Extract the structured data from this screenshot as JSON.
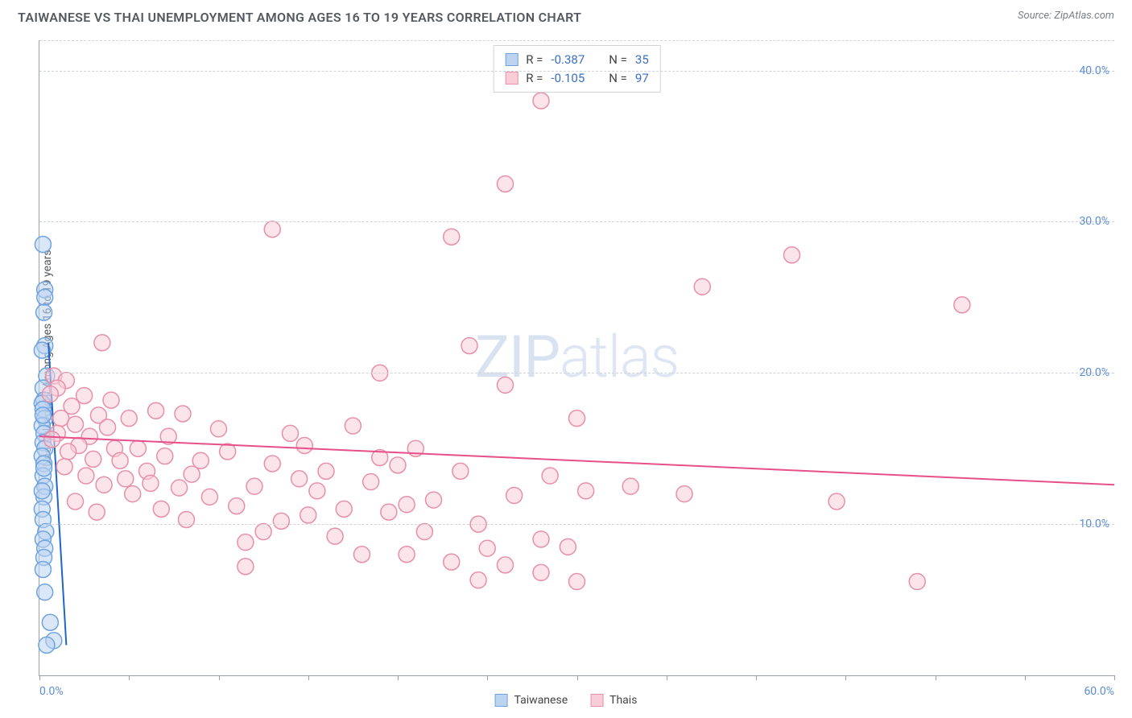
{
  "title": "TAIWANESE VS THAI UNEMPLOYMENT AMONG AGES 16 TO 19 YEARS CORRELATION CHART",
  "source": "Source: ZipAtlas.com",
  "y_axis_label": "Unemployment Among Ages 16 to 19 years",
  "watermark_bold": "ZIP",
  "watermark_light": "atlas",
  "chart": {
    "type": "scatter",
    "background_color": "#ffffff",
    "grid_color": "#d0d4d9",
    "axis_color": "#9aa0a6",
    "xlim": [
      0,
      60
    ],
    "ylim": [
      0,
      42
    ],
    "x_ticks": [
      0,
      5,
      10,
      15,
      20,
      25,
      30,
      35,
      40,
      45,
      50,
      55,
      60
    ],
    "x_tick_labels": {
      "0": "0.0%",
      "60": "60.0%"
    },
    "y_gridlines": [
      10,
      20,
      30,
      40
    ],
    "y_tick_labels": {
      "10": "10.0%",
      "20": "20.0%",
      "30": "30.0%",
      "40": "40.0%"
    },
    "marker_radius": 10,
    "marker_opacity": 0.55,
    "line_width": 2,
    "series": [
      {
        "name": "Taiwanese",
        "color_fill": "#bcd4f0",
        "color_stroke": "#6ea3e0",
        "line_color": "#1e66c7",
        "R": "-0.387",
        "N": "35",
        "trend": {
          "x1": 0.5,
          "y1": 22,
          "x2": 1.5,
          "y2": 2
        },
        "points": [
          [
            0.2,
            28.5
          ],
          [
            0.3,
            25.5
          ],
          [
            0.3,
            25.0
          ],
          [
            0.25,
            24.0
          ],
          [
            0.3,
            21.8
          ],
          [
            0.15,
            21.5
          ],
          [
            0.4,
            19.8
          ],
          [
            0.2,
            19.0
          ],
          [
            0.25,
            18.2
          ],
          [
            0.15,
            18.0
          ],
          [
            0.2,
            17.6
          ],
          [
            0.3,
            17.0
          ],
          [
            0.15,
            16.5
          ],
          [
            0.25,
            16.0
          ],
          [
            0.2,
            15.4
          ],
          [
            0.3,
            15.0
          ],
          [
            0.15,
            14.5
          ],
          [
            0.25,
            14.0
          ],
          [
            0.2,
            13.2
          ],
          [
            0.3,
            12.5
          ],
          [
            0.25,
            11.8
          ],
          [
            0.15,
            11.0
          ],
          [
            0.2,
            10.3
          ],
          [
            0.35,
            9.5
          ],
          [
            0.2,
            9.0
          ],
          [
            0.3,
            8.4
          ],
          [
            0.25,
            7.8
          ],
          [
            0.2,
            7.0
          ],
          [
            0.3,
            5.5
          ],
          [
            0.6,
            3.5
          ],
          [
            0.8,
            2.3
          ],
          [
            0.4,
            2.0
          ],
          [
            0.2,
            17.2
          ],
          [
            0.25,
            13.7
          ],
          [
            0.15,
            12.2
          ]
        ]
      },
      {
        "name": "Thais",
        "color_fill": "#f7cdd8",
        "color_stroke": "#e98fa8",
        "line_color": "#e74f8a",
        "R": "-0.105",
        "N": "97",
        "trend": {
          "x1": 0,
          "y1": 15.8,
          "x2": 60,
          "y2": 12.6
        },
        "points": [
          [
            28.0,
            38.0
          ],
          [
            26.0,
            32.5
          ],
          [
            13.0,
            29.5
          ],
          [
            23.0,
            29.0
          ],
          [
            42.0,
            27.8
          ],
          [
            37.0,
            25.7
          ],
          [
            51.5,
            24.5
          ],
          [
            3.5,
            22.0
          ],
          [
            24.0,
            21.8
          ],
          [
            0.8,
            19.8
          ],
          [
            1.5,
            19.5
          ],
          [
            19.0,
            20.0
          ],
          [
            1.0,
            19.0
          ],
          [
            0.6,
            18.6
          ],
          [
            26.0,
            19.2
          ],
          [
            2.5,
            18.5
          ],
          [
            4.0,
            18.2
          ],
          [
            1.8,
            17.8
          ],
          [
            6.5,
            17.5
          ],
          [
            3.3,
            17.2
          ],
          [
            1.2,
            17.0
          ],
          [
            5.0,
            17.0
          ],
          [
            30.0,
            17.0
          ],
          [
            2.0,
            16.6
          ],
          [
            3.8,
            16.4
          ],
          [
            8.0,
            17.3
          ],
          [
            17.5,
            16.5
          ],
          [
            1.0,
            16.0
          ],
          [
            2.8,
            15.8
          ],
          [
            0.7,
            15.6
          ],
          [
            14.0,
            16.0
          ],
          [
            2.2,
            15.2
          ],
          [
            5.5,
            15.0
          ],
          [
            4.2,
            15.0
          ],
          [
            1.6,
            14.8
          ],
          [
            7.0,
            14.5
          ],
          [
            3.0,
            14.3
          ],
          [
            10.5,
            14.8
          ],
          [
            9.0,
            14.2
          ],
          [
            21.0,
            15.0
          ],
          [
            13.0,
            14.0
          ],
          [
            1.4,
            13.8
          ],
          [
            6.0,
            13.5
          ],
          [
            2.6,
            13.2
          ],
          [
            4.8,
            13.0
          ],
          [
            8.5,
            13.3
          ],
          [
            16.0,
            13.5
          ],
          [
            23.5,
            13.5
          ],
          [
            28.5,
            13.2
          ],
          [
            18.5,
            12.8
          ],
          [
            3.6,
            12.6
          ],
          [
            7.8,
            12.4
          ],
          [
            12.0,
            12.5
          ],
          [
            14.5,
            13.0
          ],
          [
            20.0,
            13.9
          ],
          [
            33.0,
            12.5
          ],
          [
            5.2,
            12.0
          ],
          [
            9.5,
            11.8
          ],
          [
            2.0,
            11.5
          ],
          [
            15.5,
            12.2
          ],
          [
            22.0,
            11.6
          ],
          [
            36.0,
            12.0
          ],
          [
            26.5,
            11.9
          ],
          [
            11.0,
            11.2
          ],
          [
            6.8,
            11.0
          ],
          [
            3.2,
            10.8
          ],
          [
            17.0,
            11.0
          ],
          [
            19.5,
            10.8
          ],
          [
            30.5,
            12.2
          ],
          [
            44.5,
            11.5
          ],
          [
            8.2,
            10.3
          ],
          [
            13.5,
            10.2
          ],
          [
            24.5,
            10.0
          ],
          [
            21.5,
            9.5
          ],
          [
            16.5,
            9.2
          ],
          [
            28.0,
            9.0
          ],
          [
            11.5,
            8.8
          ],
          [
            29.5,
            8.5
          ],
          [
            18.0,
            8.0
          ],
          [
            25.0,
            8.4
          ],
          [
            23.0,
            7.5
          ],
          [
            20.5,
            8.0
          ],
          [
            26.0,
            7.3
          ],
          [
            28.0,
            6.8
          ],
          [
            24.5,
            6.3
          ],
          [
            30.0,
            6.2
          ],
          [
            11.5,
            7.2
          ],
          [
            49.0,
            6.2
          ],
          [
            20.5,
            11.3
          ],
          [
            14.8,
            15.2
          ],
          [
            10.0,
            16.3
          ],
          [
            7.2,
            15.8
          ],
          [
            4.5,
            14.2
          ],
          [
            6.2,
            12.7
          ],
          [
            19.0,
            14.4
          ],
          [
            12.5,
            9.5
          ],
          [
            15.0,
            10.6
          ]
        ]
      }
    ]
  },
  "stats_labels": {
    "R": "R =",
    "N": "N ="
  },
  "legend_items": [
    {
      "label": "Taiwanese",
      "fill": "#bcd4f0",
      "stroke": "#6ea3e0"
    },
    {
      "label": "Thais",
      "fill": "#f7cdd8",
      "stroke": "#e98fa8"
    }
  ]
}
